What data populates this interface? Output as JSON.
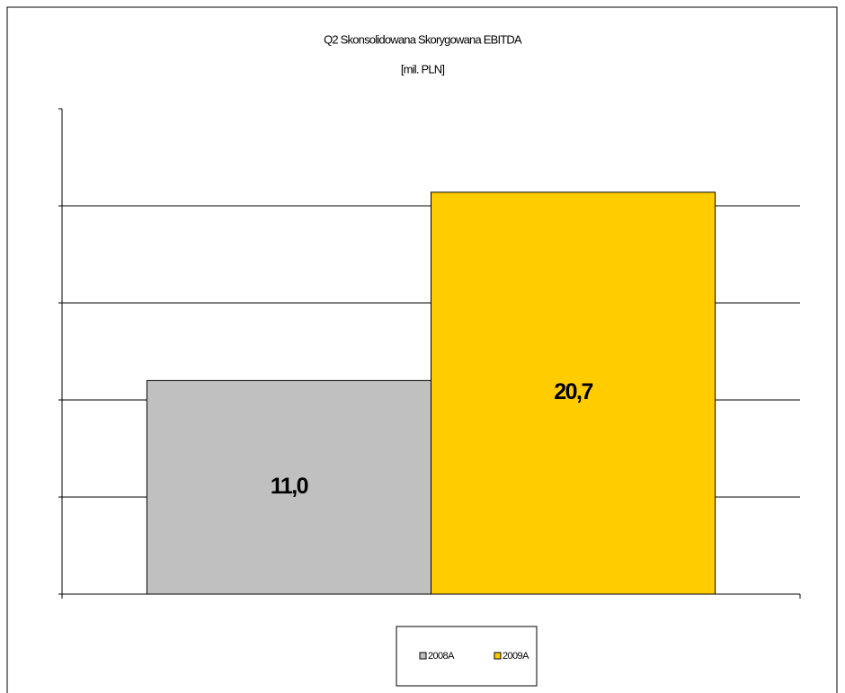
{
  "chart_data": {
    "type": "bar",
    "title": "Q2 Skonsolidowana Skorygowana EBITDA",
    "subtitle": "[mil. PLN]",
    "categories": [
      null
    ],
    "series": [
      {
        "name": "2008A",
        "color": "#c0c0c0",
        "values": [
          11.0
        ],
        "value_labels": [
          "11,0"
        ]
      },
      {
        "name": "2009A",
        "color": "#ffcc00",
        "values": [
          20.7
        ],
        "value_labels": [
          "20,7"
        ]
      }
    ],
    "ylim": [
      0,
      25
    ],
    "yticks": [
      0,
      5,
      10,
      15,
      20,
      25
    ],
    "grid": true
  }
}
